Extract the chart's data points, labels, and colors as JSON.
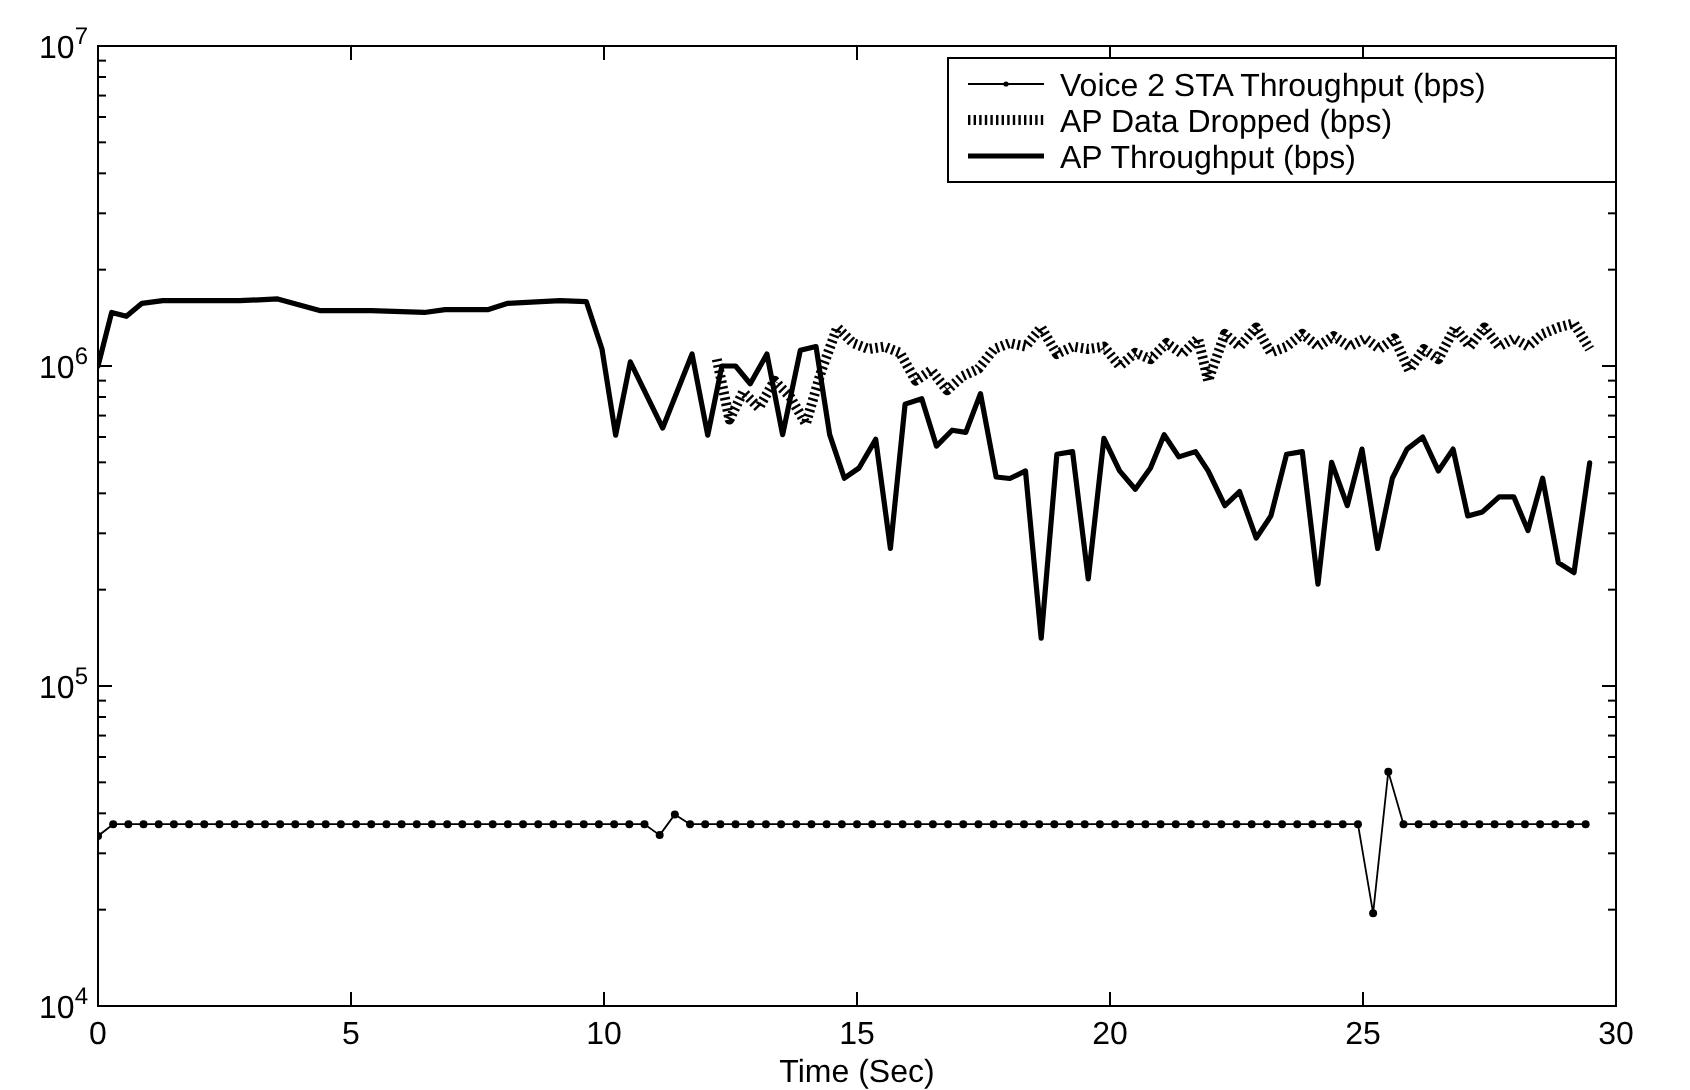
{
  "chart_data": {
    "type": "line",
    "xlabel": "Time (Sec)",
    "log": "y",
    "xlim": [
      0,
      30
    ],
    "xticks": [
      0,
      5,
      10,
      15,
      20,
      25,
      30
    ],
    "ylim": [
      10000,
      10000000
    ],
    "yticks": [
      {
        "value": 10000,
        "label": "10$^{4}$"
      },
      {
        "value": 20000,
        "label": null
      },
      {
        "value": 30000,
        "label": null
      },
      {
        "value": 40000,
        "label": null
      },
      {
        "value": 50000,
        "label": null
      },
      {
        "value": 60000,
        "label": null
      },
      {
        "value": 70000,
        "label": null
      },
      {
        "value": 80000,
        "label": null
      },
      {
        "value": 90000,
        "label": null
      },
      {
        "value": 100000,
        "label": "10$^{5}$"
      },
      {
        "value": 200000,
        "label": null
      },
      {
        "value": 300000,
        "label": null
      },
      {
        "value": 400000,
        "label": null
      },
      {
        "value": 500000,
        "label": null
      },
      {
        "value": 600000,
        "label": null
      },
      {
        "value": 700000,
        "label": null
      },
      {
        "value": 800000,
        "label": null
      },
      {
        "value": 900000,
        "label": null
      },
      {
        "value": 1000000,
        "label": "10$^{6}$"
      },
      {
        "value": 2000000,
        "label": null
      },
      {
        "value": 3000000,
        "label": null
      },
      {
        "value": 4000000,
        "label": null
      },
      {
        "value": 5000000,
        "label": null
      },
      {
        "value": 6000000,
        "label": null
      },
      {
        "value": 7000000,
        "label": null
      },
      {
        "value": 8000000,
        "label": null
      },
      {
        "value": 9000000,
        "label": null
      },
      {
        "value": 10000000,
        "label": "10$^{7}$"
      }
    ],
    "legend": "top right",
    "series": [
      {
        "name": "Voice 2 STA Throughput (bps)",
        "color": "#000000",
        "marker": "circle",
        "line_style": "solid",
        "x": [
          0,
          0.3,
          0.6,
          0.9,
          1.2,
          1.5,
          1.8,
          2.1,
          2.4,
          2.7,
          3,
          3.3,
          3.6,
          3.9,
          4.2,
          4.5,
          4.8,
          5.1,
          5.4,
          5.7,
          6,
          6.3,
          6.6,
          6.9,
          7.2,
          7.5,
          7.8,
          8.1,
          8.4,
          8.7,
          9,
          9.3,
          9.6,
          9.9,
          10.2,
          10.5,
          10.8,
          11.1,
          11.4,
          11.7,
          12,
          12.3,
          12.6,
          12.9,
          13.2,
          13.5,
          13.8,
          14.1,
          14.4,
          14.7,
          15,
          15.3,
          15.6,
          15.9,
          16.2,
          16.5,
          16.8,
          17.1,
          17.4,
          17.7,
          18,
          18.3,
          18.6,
          18.9,
          19.2,
          19.5,
          19.8,
          20.1,
          20.4,
          20.7,
          21,
          21.3,
          21.6,
          21.9,
          22.2,
          22.5,
          22.8,
          23.1,
          23.4,
          23.7,
          24,
          24.3,
          24.6,
          24.9,
          25.2,
          25.5,
          25.8,
          26.1,
          26.4,
          26.7,
          27,
          27.3,
          27.6,
          27.9,
          28.2,
          28.5,
          28.8,
          29.1,
          29.4
        ],
        "values": [
          34000,
          37000,
          37000,
          37000,
          37000,
          37000,
          37000,
          37000,
          37000,
          37000,
          37000,
          37000,
          37000,
          37000,
          37000,
          37000,
          37000,
          37000,
          37000,
          37000,
          37000,
          37000,
          37000,
          37000,
          37000,
          37000,
          37000,
          37000,
          37000,
          37000,
          37000,
          37000,
          37000,
          37000,
          37000,
          37000,
          37000,
          34200,
          39700,
          37000,
          37000,
          37000,
          37000,
          37000,
          37000,
          37000,
          37000,
          37000,
          37000,
          37000,
          37000,
          37000,
          37000,
          37000,
          37000,
          37000,
          37000,
          37000,
          37000,
          37000,
          37000,
          37000,
          37000,
          37000,
          37000,
          37000,
          37000,
          37000,
          37000,
          37000,
          37000,
          37000,
          37000,
          37000,
          37000,
          37000,
          37000,
          37000,
          37000,
          37000,
          37000,
          37000,
          37000,
          37000,
          19500,
          54000,
          37000,
          37000,
          37000,
          37000,
          37000,
          37000,
          37000,
          37000,
          37000,
          37000,
          37000,
          37000,
          37000
        ]
      },
      {
        "name": "AP Data Dropped (bps)",
        "color": "#000000",
        "marker": "none",
        "line_style": "dotted",
        "x": [
          12.23,
          12.48,
          12.75,
          13.06,
          13.37,
          13.68,
          13.99,
          14.3,
          14.61,
          14.92,
          15.23,
          15.54,
          15.85,
          16.16,
          16.47,
          16.78,
          17.09,
          17.4,
          17.71,
          18.02,
          18.33,
          18.64,
          18.95,
          19.26,
          19.57,
          19.88,
          20.19,
          20.5,
          20.8,
          21.12,
          21.43,
          21.74,
          21.94,
          22.27,
          22.56,
          22.89,
          23.18,
          23.49,
          23.8,
          24.11,
          24.42,
          24.73,
          25.04,
          25.33,
          25.62,
          25.91,
          26.2,
          26.49,
          26.82,
          27.11,
          27.4,
          27.69,
          27.98,
          28.26,
          28.55,
          28.86,
          29.17,
          29.48
        ],
        "values": [
          1050000,
          680000,
          830000,
          740000,
          900000,
          800000,
          660000,
          970000,
          1320000,
          1180000,
          1130000,
          1150000,
          1100000,
          900000,
          970000,
          840000,
          930000,
          980000,
          1130000,
          1180000,
          1150000,
          1320000,
          1090000,
          1150000,
          1130000,
          1150000,
          1000000,
          1100000,
          1050000,
          1180000,
          1090000,
          1220000,
          900000,
          1260000,
          1150000,
          1320000,
          1100000,
          1150000,
          1260000,
          1150000,
          1240000,
          1150000,
          1220000,
          1130000,
          1220000,
          970000,
          1130000,
          1050000,
          1320000,
          1150000,
          1320000,
          1150000,
          1220000,
          1150000,
          1260000,
          1320000,
          1360000,
          1130000
        ]
      },
      {
        "name": "AP Throughput (bps)",
        "color": "#000000",
        "marker": "none",
        "line_style": "solid",
        "x": [
          0,
          0.27,
          0.56,
          0.87,
          1.28,
          2,
          2.8,
          3.55,
          4.38,
          5.4,
          6.45,
          6.86,
          7.7,
          8.1,
          9.13,
          9.65,
          9.96,
          10.23,
          10.52,
          11.16,
          11.74,
          12.05,
          12.33,
          12.6,
          12.89,
          13.22,
          13.53,
          13.88,
          14.19,
          14.46,
          14.75,
          15.04,
          15.37,
          15.66,
          15.95,
          16.28,
          16.57,
          16.88,
          17.15,
          17.44,
          17.75,
          18.02,
          18.33,
          18.64,
          18.95,
          19.26,
          19.57,
          19.88,
          20.19,
          20.5,
          20.8,
          21.07,
          21.36,
          21.69,
          21.94,
          22.27,
          22.56,
          22.89,
          23.18,
          23.49,
          23.8,
          24.11,
          24.38,
          24.69,
          24.98,
          25.29,
          25.58,
          25.87,
          26.18,
          26.49,
          26.78,
          27.07,
          27.36,
          27.69,
          27.98,
          28.26,
          28.55,
          28.86,
          29.17,
          29.48
        ],
        "values": [
          1000000,
          1470000,
          1430000,
          1570000,
          1600000,
          1600000,
          1600000,
          1620000,
          1490000,
          1490000,
          1470000,
          1500000,
          1500000,
          1570000,
          1600000,
          1590000,
          1130000,
          608000,
          1030000,
          640000,
          1090000,
          608000,
          1000000,
          1000000,
          880000,
          1090000,
          610000,
          1120000,
          1150000,
          610000,
          446000,
          480000,
          590000,
          269000,
          760000,
          790000,
          562000,
          630000,
          620000,
          820000,
          450000,
          445000,
          470000,
          141000,
          530000,
          540000,
          216000,
          594000,
          470000,
          412000,
          480000,
          610000,
          520000,
          540000,
          470000,
          366000,
          405000,
          290000,
          340000,
          530000,
          540000,
          208000,
          500000,
          366000,
          550000,
          269000,
          446000,
          550000,
          600000,
          470000,
          550000,
          340000,
          350000,
          390000,
          390000,
          306000,
          446000,
          243000,
          226000,
          498000
        ]
      }
    ]
  }
}
